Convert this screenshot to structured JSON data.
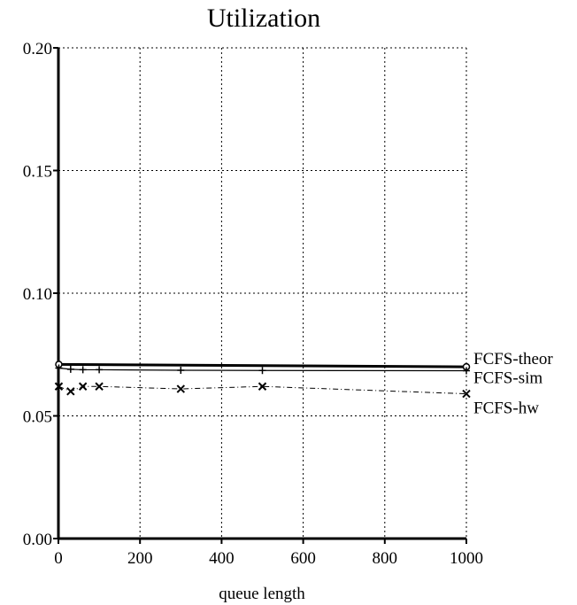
{
  "chart_data": {
    "type": "line",
    "title": "Utilization",
    "xlabel": "queue length",
    "ylabel": "",
    "xlim": [
      0,
      1000
    ],
    "ylim": [
      0,
      0.2
    ],
    "xticks": [
      "0",
      "200",
      "400",
      "600",
      "800",
      "1000"
    ],
    "yticks": [
      "0.00",
      "0.05",
      "0.10",
      "0.15",
      "0.20"
    ],
    "grid": true,
    "legend_position": "right-end-of-lines",
    "series": [
      {
        "name": "FCFS-theor",
        "marker": "circle",
        "style": "thick-solid",
        "x": [
          1,
          1000
        ],
        "y": [
          0.071,
          0.07
        ]
      },
      {
        "name": "FCFS-sim",
        "marker": "plus",
        "style": "thin-solid",
        "x": [
          1,
          30,
          60,
          100,
          300,
          500,
          1000
        ],
        "y": [
          0.0695,
          0.069,
          0.0688,
          0.0688,
          0.0686,
          0.0685,
          0.0684
        ]
      },
      {
        "name": "FCFS-hw",
        "marker": "x",
        "style": "dash-dot",
        "x": [
          1,
          30,
          60,
          100,
          300,
          500,
          1000
        ],
        "y": [
          0.062,
          0.06,
          0.062,
          0.062,
          0.061,
          0.062,
          0.059
        ]
      }
    ]
  }
}
